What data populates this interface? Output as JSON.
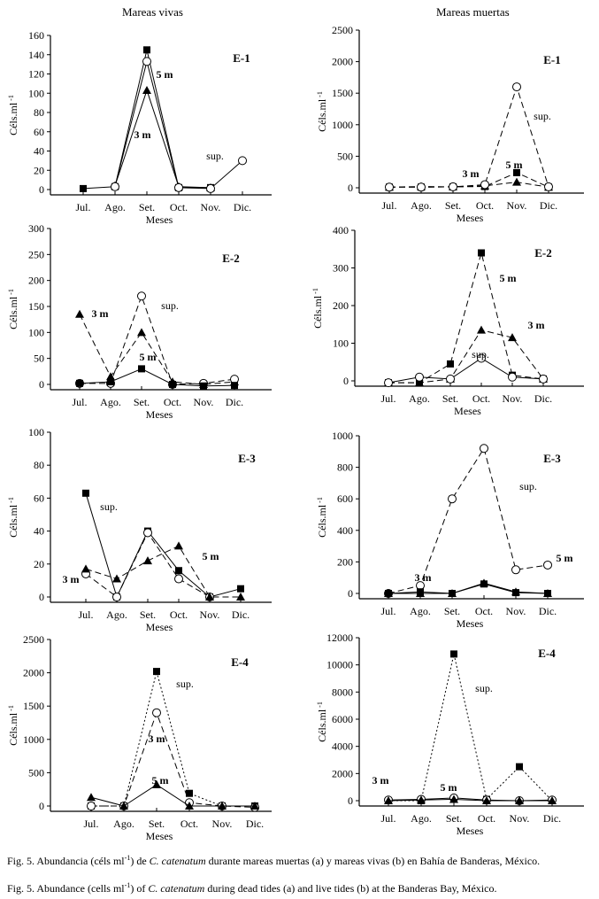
{
  "column_titles": [
    "Mareas vivas",
    "Mareas muertas"
  ],
  "captions": {
    "es": {
      "pre": "Fig. 5. Abundancia (céls ml",
      "sup": "-1",
      "mid": ") de ",
      "species": "C. catenatum",
      "post": " durante mareas muertas (a) y mareas vivas (b) en Bahía de Banderas, México."
    },
    "en": {
      "pre": "Fig. 5. Abundance (cells ml",
      "sup": "-1",
      "mid": ") of ",
      "species": "C. catenatum",
      "post": " during dead tides (a) and live tides (b) at the Banderas Bay, México."
    }
  },
  "chart_data": [
    {
      "id": "vivas-E1",
      "type": "line",
      "title": "E-1",
      "categories": [
        "Jul.",
        "Ago.",
        "Set.",
        "Oct.",
        "Nov.",
        "Dic."
      ],
      "xlabel": "Meses",
      "ylabel": "Céls.ml -1",
      "ylim": [
        0,
        160
      ],
      "yticks": [
        0,
        20,
        40,
        60,
        80,
        100,
        120,
        140,
        160
      ],
      "series": [
        {
          "name": "5 m",
          "marker": "square",
          "dash": "solid",
          "values": [
            1,
            3,
            145,
            2,
            2,
            null
          ]
        },
        {
          "name": "3 m",
          "marker": "triangle",
          "dash": "solid",
          "values": [
            null,
            4,
            103,
            3,
            2,
            null
          ]
        },
        {
          "name": "sup.",
          "marker": "circle",
          "dash": "solid",
          "values": [
            null,
            3,
            133,
            2,
            1,
            30
          ]
        }
      ]
    },
    {
      "id": "muertas-E1",
      "type": "line",
      "title": "E-1",
      "categories": [
        "Jul.",
        "Ago.",
        "Set.",
        "Oct.",
        "Nov.",
        "Dic."
      ],
      "xlabel": "Meses",
      "ylabel": "Céls.ml -1",
      "ylim": [
        0,
        2500
      ],
      "yticks": [
        0,
        500,
        1000,
        1500,
        2000,
        2500
      ],
      "series": [
        {
          "name": "5 m",
          "marker": "square",
          "dash": "dashed",
          "values": [
            10,
            10,
            15,
            20,
            240,
            10
          ]
        },
        {
          "name": "3 m",
          "marker": "triangle",
          "dash": "dashed",
          "values": [
            10,
            20,
            15,
            30,
            90,
            10
          ]
        },
        {
          "name": "sup.",
          "marker": "circle",
          "dash": "dashed",
          "values": [
            10,
            10,
            15,
            50,
            1600,
            15
          ]
        }
      ]
    },
    {
      "id": "vivas-E2",
      "type": "line",
      "title": "E-2",
      "categories": [
        "Jul.",
        "Ago.",
        "Set.",
        "Oct.",
        "Nov.",
        "Dic."
      ],
      "xlabel": "Meses",
      "ylabel": "Céls.ml -1",
      "ylim": [
        0,
        300
      ],
      "yticks": [
        0,
        50,
        100,
        150,
        200,
        250,
        300
      ],
      "series": [
        {
          "name": "3 m",
          "marker": "triangle",
          "dash": "dashed",
          "values": [
            135,
            15,
            100,
            5,
            0,
            5
          ]
        },
        {
          "name": "sup.",
          "marker": "circle",
          "dash": "dashed",
          "values": [
            2,
            2,
            170,
            0,
            2,
            10
          ]
        },
        {
          "name": "5 m",
          "marker": "square",
          "dash": "solid",
          "values": [
            2,
            5,
            30,
            0,
            -3,
            -2
          ]
        }
      ]
    },
    {
      "id": "muertas-E2",
      "type": "line",
      "title": "E-2",
      "categories": [
        "Jul.",
        "Ago.",
        "Set.",
        "Oct.",
        "Nov.",
        "Dic."
      ],
      "xlabel": "Meses",
      "ylabel": "Céls.ml -1",
      "ylim": [
        0,
        400
      ],
      "yticks": [
        0,
        100,
        200,
        300,
        400
      ],
      "series": [
        {
          "name": "5 m",
          "marker": "square",
          "dash": "dashed",
          "values": [
            -5,
            -5,
            45,
            340,
            15,
            5
          ]
        },
        {
          "name": "3 m",
          "marker": "triangle",
          "dash": "dashed",
          "values": [
            -5,
            -5,
            5,
            135,
            115,
            5
          ]
        },
        {
          "name": "sup.",
          "marker": "circle",
          "dash": "solid",
          "values": [
            -5,
            10,
            5,
            60,
            10,
            5
          ]
        }
      ]
    },
    {
      "id": "vivas-E3",
      "type": "line",
      "title": "E-3",
      "categories": [
        "Jul.",
        "Ago.",
        "Set.",
        "Oct.",
        "Nov.",
        "Dic."
      ],
      "xlabel": "Meses",
      "ylabel": "Céls.ml -1",
      "ylim": [
        0,
        100
      ],
      "yticks": [
        0,
        20,
        40,
        60,
        80,
        100
      ],
      "series": [
        {
          "name": "sup.",
          "marker": "square",
          "dash": "solid",
          "values": [
            63,
            0,
            40,
            16,
            0,
            5
          ]
        },
        {
          "name": "3 m",
          "marker": "circle",
          "dash": "dashed",
          "values": [
            14,
            0,
            39,
            11,
            0,
            null
          ]
        },
        {
          "name": "5 m",
          "marker": "triangle",
          "dash": "dashed",
          "values": [
            17,
            11,
            22,
            31,
            0,
            0
          ]
        }
      ]
    },
    {
      "id": "muertas-E3",
      "type": "line",
      "title": "E-3",
      "categories": [
        "Jul.",
        "Ago.",
        "Set.",
        "Oct.",
        "Nov.",
        "Dic."
      ],
      "xlabel": "Meses",
      "ylabel": "Céls.ml -1",
      "ylim": [
        0,
        1000
      ],
      "yticks": [
        0,
        200,
        400,
        600,
        800,
        1000
      ],
      "series": [
        {
          "name": "sup.",
          "marker": "circle",
          "dash": "dashed",
          "values": [
            0,
            50,
            600,
            920,
            150,
            180
          ]
        },
        {
          "name": "3 m",
          "marker": "square",
          "dash": "solid",
          "values": [
            0,
            10,
            0,
            60,
            5,
            0
          ]
        },
        {
          "name": "5 m",
          "marker": "triangle",
          "dash": "solid",
          "values": [
            0,
            0,
            0,
            65,
            10,
            0
          ]
        }
      ]
    },
    {
      "id": "vivas-E4",
      "type": "line",
      "title": "E-4",
      "categories": [
        "Jul.",
        "Ago.",
        "Set.",
        "Oct.",
        "Nov.",
        "Dic."
      ],
      "xlabel": "Meses",
      "ylabel": "Céls.ml -1",
      "ylim": [
        0,
        2500
      ],
      "yticks": [
        0,
        500,
        1000,
        1500,
        2000,
        2500
      ],
      "series": [
        {
          "name": "sup.",
          "marker": "square",
          "dash": "dotted",
          "values": [
            0,
            0,
            2020,
            190,
            0,
            0
          ]
        },
        {
          "name": "3 m",
          "marker": "circle",
          "dash": "dashed",
          "values": [
            0,
            0,
            1400,
            50,
            0,
            -20
          ]
        },
        {
          "name": "5 m",
          "marker": "triangle",
          "dash": "solid",
          "values": [
            130,
            0,
            320,
            0,
            0,
            0
          ]
        }
      ]
    },
    {
      "id": "muertas-E4",
      "type": "line",
      "title": "E-4",
      "categories": [
        "Jul.",
        "Ago.",
        "Set.",
        "Oct.",
        "Nov.",
        "Dic."
      ],
      "xlabel": "Meses",
      "ylabel": "Céls.ml -1",
      "ylim": [
        0,
        12000
      ],
      "yticks": [
        0,
        2000,
        4000,
        6000,
        8000,
        10000,
        12000
      ],
      "series": [
        {
          "name": "sup.",
          "marker": "square",
          "dash": "dotted",
          "values": [
            0,
            0,
            10800,
            100,
            2500,
            0
          ]
        },
        {
          "name": "3 m",
          "marker": "circle",
          "dash": "solid",
          "values": [
            50,
            100,
            200,
            50,
            0,
            50
          ]
        },
        {
          "name": "5 m",
          "marker": "triangle",
          "dash": "solid",
          "values": [
            0,
            50,
            100,
            0,
            0,
            0
          ]
        }
      ]
    }
  ]
}
